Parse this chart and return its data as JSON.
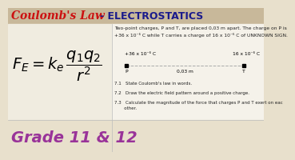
{
  "bg_color": "#e8e0cc",
  "title_bar_color": "#c8b89a",
  "title1": "Coulomb's Law",
  "title2": "- ELECTROSTATICS",
  "title1_color": "#cc1111",
  "title2_color": "#1a1a8c",
  "formula_color": "#000000",
  "grade_text": "Grade 11 & 12",
  "grade_color": "#993399",
  "problem_line1": "Two-point charges, P and T, are placed 0,03 m apart. The charge on P is",
  "problem_line2": "+36 x 10⁻⁶ C while T carries a charge of 16 x 10⁻⁶ C of UNKNOWN SIGN.",
  "charge_P": "+36 x 10⁻⁶ C",
  "charge_T": "16 x 10⁻⁶ C",
  "distance": "0,03 m",
  "label_P": "P",
  "label_T": "T",
  "q71": "7.1   State Coulomb's law in words.",
  "q72": "7.2   Draw the electric field pattern around a positive charge.",
  "q73_1": "7.3   Calculate the magnitude of the force that charges P and T exert on eac",
  "q73_2": "       other.",
  "dot_color": "#000000",
  "line_color": "#aaaaaa",
  "text_color": "#222222"
}
